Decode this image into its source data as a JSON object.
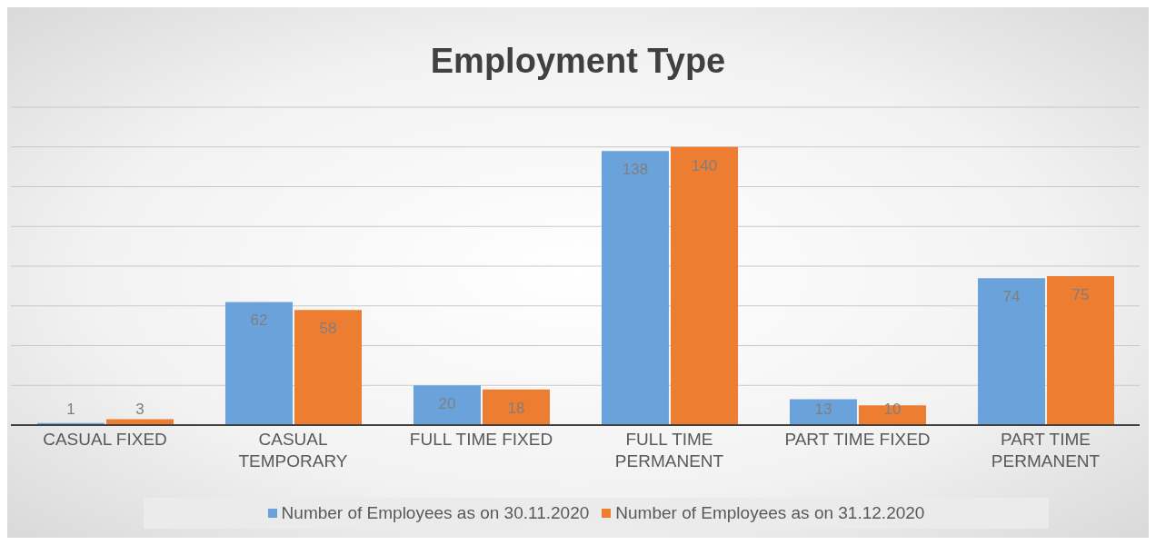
{
  "chart_data": {
    "type": "bar",
    "title": "Employment Type",
    "categories": [
      "CASUAL FIXED",
      "CASUAL TEMPORARY",
      "FULL TIME FIXED",
      "FULL TIME PERMANENT",
      "PART TIME FIXED",
      "PART TIME PERMANENT"
    ],
    "series": [
      {
        "name": "Number of Employees as on 30.11.2020",
        "color": "#6aa3dc",
        "values": [
          1,
          62,
          20,
          138,
          13,
          74
        ]
      },
      {
        "name": "Number of Employees as on 31.12.2020",
        "color": "#ed7d31",
        "values": [
          3,
          58,
          18,
          140,
          10,
          75
        ]
      }
    ],
    "ylim": [
      0,
      160
    ],
    "yticks": [
      {
        "value": 0,
        "label": null
      },
      {
        "value": 20,
        "label": null
      },
      {
        "value": 40,
        "label": null
      },
      {
        "value": 60,
        "label": null
      },
      {
        "value": 80,
        "label": null
      },
      {
        "value": 100,
        "label": null
      },
      {
        "value": 120,
        "label": null
      },
      {
        "value": 140,
        "label": null
      },
      {
        "value": 160,
        "label": null
      }
    ],
    "tick_labels": "x",
    "grid": "y",
    "legend": "bottom",
    "data_labels": true
  }
}
